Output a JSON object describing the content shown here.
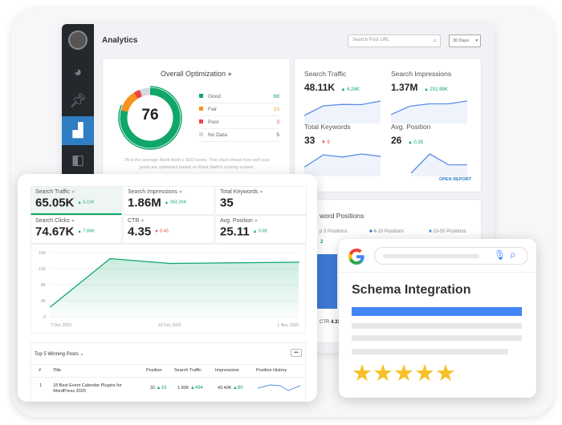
{
  "back_panel": {
    "title": "Analytics",
    "search_placeholder": "Search Post URL",
    "range_select": "30 Days",
    "sidebar_icons": [
      "avatar",
      "dashboard-icon",
      "pin-icon",
      "analytics-icon",
      "schema-icon"
    ],
    "optimization": {
      "title": "Overall Optimization",
      "score": "76",
      "legend": [
        {
          "label": "Good",
          "value": "68",
          "color": "#10a66a"
        },
        {
          "label": "Fair",
          "value": "10",
          "color": "#f6921e"
        },
        {
          "label": "Poor",
          "value": "3",
          "color": "#e44"
        },
        {
          "label": "No Data",
          "value": "5",
          "color": "#d7dae0"
        }
      ],
      "description": "76 is the average Rank Math's SEO score. This chart shows how well your posts are optimized based on Rank Math's scoring system."
    },
    "metrics": [
      {
        "label": "Search Traffic",
        "value": "48.11K",
        "delta": "4.24K",
        "trend": "up",
        "spark": [
          2,
          6,
          6.6,
          6.5,
          8
        ]
      },
      {
        "label": "Search Impressions",
        "value": "1.37M",
        "delta": "201.99K",
        "trend": "up",
        "spark": [
          2,
          5,
          5.8,
          5.8,
          6.8
        ]
      },
      {
        "label": "Total Keywords",
        "value": "33",
        "delta": "9",
        "trend": "down",
        "spark": [
          2,
          6,
          5.3,
          6.3,
          5.5
        ]
      },
      {
        "label": "Avg. Position",
        "value": "26",
        "delta": "0.35",
        "trend": "up",
        "spark": [
          0,
          8,
          3.5,
          3.5
        ]
      }
    ],
    "open_report": "OPEN REPORT",
    "keyword_positions": {
      "title": "word Positions",
      "legend": [
        "p 3 Positions",
        "4-10 Positions",
        "10-50 Positions"
      ],
      "top_value": "2",
      "ctr_label": "CTR",
      "ctr_value": "4.33"
    }
  },
  "front_panel": {
    "stats": [
      {
        "label": "Search Traffic",
        "value": "65.05K",
        "delta": "5.11K",
        "trend": "up"
      },
      {
        "label": "Search Impressions",
        "value": "1.86M",
        "delta": "363.26K",
        "trend": "up"
      },
      {
        "label": "Total Keywords",
        "value": "35",
        "delta": "",
        "trend": "none"
      },
      {
        "label": "Search Clicks",
        "value": "74.67K",
        "delta": "7.66K",
        "trend": "up"
      },
      {
        "label": "CTR",
        "value": "4.35",
        "delta": "0.45",
        "trend": "down"
      },
      {
        "label": "Avg. Position",
        "value": "25.11",
        "delta": "0.08",
        "trend": "up"
      }
    ],
    "chart_data": {
      "type": "area",
      "x": [
        "7 Oct, 2020",
        "13 Oct, 2020",
        "19 Oct, 2020",
        "1 Nov, 2020"
      ],
      "values": [
        2500,
        14500,
        13300,
        13600
      ],
      "yticks": [
        "0",
        "4K",
        "8K",
        "12K",
        "16K"
      ],
      "xticks": [
        "7 Oct, 2020",
        "19 Oct, 2020",
        "1 Nov, 2020"
      ],
      "ylim": [
        0,
        16000
      ],
      "color": "#10a66a"
    },
    "table": {
      "title": "Top 5 Winning Posts",
      "more": "•••",
      "headers": [
        "#",
        "Title",
        "Position",
        "Search Traffic",
        "Impressions",
        "Position History"
      ],
      "rows": [
        {
          "num": "1",
          "title": "18 Best Event Calendar Plugins for WordPress 2020",
          "position": "32",
          "position_delta": "10",
          "traffic": "1.90K",
          "traffic_delta": "494",
          "impressions": "43.40K",
          "impressions_delta": "80"
        }
      ]
    }
  },
  "google_card": {
    "title": "Schema Integration",
    "rating": 5,
    "accent": "#4285f4",
    "star_color": "#f6c026"
  }
}
